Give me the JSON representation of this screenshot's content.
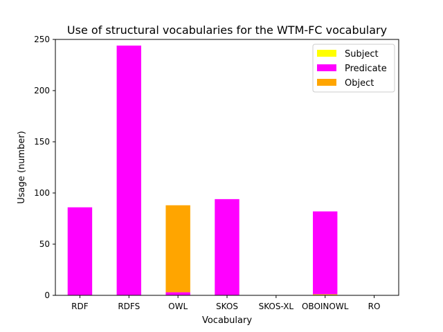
{
  "chart_data": {
    "type": "bar",
    "stacked": true,
    "title": "Use of structural vocabularies for the WTM-FC vocabulary",
    "xlabel": "Vocabulary",
    "ylabel": "Usage (number)",
    "ylim": [
      0,
      250
    ],
    "yticks": [
      0,
      50,
      100,
      150,
      200,
      250
    ],
    "grid": false,
    "legend_position": "top-right",
    "categories": [
      "RDF",
      "RDFS",
      "OWL",
      "SKOS",
      "SKOS-XL",
      "OBOINOWL",
      "RO"
    ],
    "series": [
      {
        "name": "Subject",
        "color": "#ffff00",
        "values": [
          0,
          0,
          0,
          0,
          0,
          1,
          0
        ]
      },
      {
        "name": "Predicate",
        "color": "#ff00ff",
        "values": [
          86,
          244,
          3,
          94,
          0,
          81,
          0
        ]
      },
      {
        "name": "Object",
        "color": "#ffa500",
        "values": [
          0,
          0,
          85,
          0,
          0,
          0,
          0
        ]
      }
    ]
  }
}
